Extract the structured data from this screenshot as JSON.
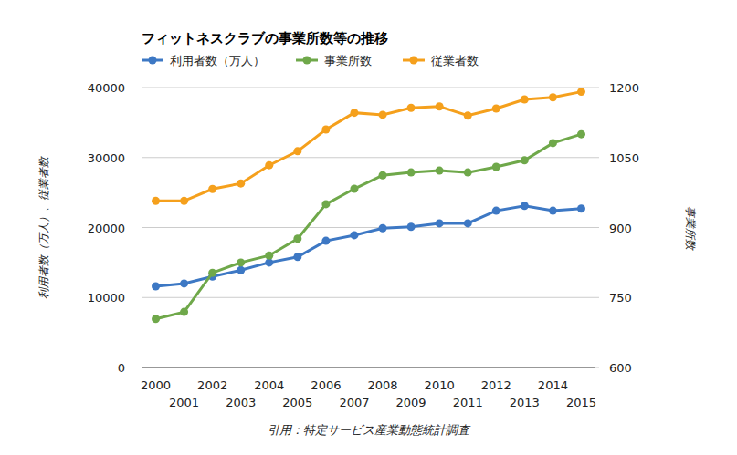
{
  "chart_data": {
    "type": "line",
    "title": "フィットネスクラブの事業所数等の推移",
    "ylabel": "利用者数（万人）、従業者数",
    "y2label": "事業所数",
    "note": "引用：特定サービス産業動態統計調査",
    "categories": [
      "2000",
      "2001",
      "2002",
      "2003",
      "2004",
      "2005",
      "2006",
      "2007",
      "2008",
      "2009",
      "2010",
      "2011",
      "2012",
      "2013",
      "2014",
      "2015"
    ],
    "ylim": [
      0,
      40000
    ],
    "yticks": [
      0,
      10000,
      20000,
      30000,
      40000
    ],
    "y2lim": [
      600,
      1200
    ],
    "y2ticks": [
      600,
      750,
      900,
      1050,
      1200
    ],
    "grid": true,
    "legend": "top",
    "series": [
      {
        "name": "利用者数（万人）",
        "color": "#3d78c4",
        "marker": "circle",
        "values": [
          11600,
          12000,
          13000,
          13900,
          15000,
          15800,
          18100,
          18900,
          19900,
          20100,
          20600,
          20600,
          22400,
          23100,
          22400,
          22700
        ]
      },
      {
        "name": "事業所数",
        "color": "#6fa84a",
        "marker": "circle",
        "axis": "y2",
        "values": [
          704,
          719,
          803,
          825,
          840,
          876,
          950,
          983,
          1012,
          1018,
          1022,
          1018,
          1030,
          1044,
          1081,
          1100
        ]
      },
      {
        "name": "従業者数",
        "color": "#f5a01c",
        "marker": "circle",
        "values": [
          23800,
          23800,
          25500,
          26300,
          28900,
          30900,
          34000,
          36400,
          36100,
          37100,
          37300,
          36000,
          37000,
          38300,
          38600,
          39400
        ]
      }
    ]
  }
}
